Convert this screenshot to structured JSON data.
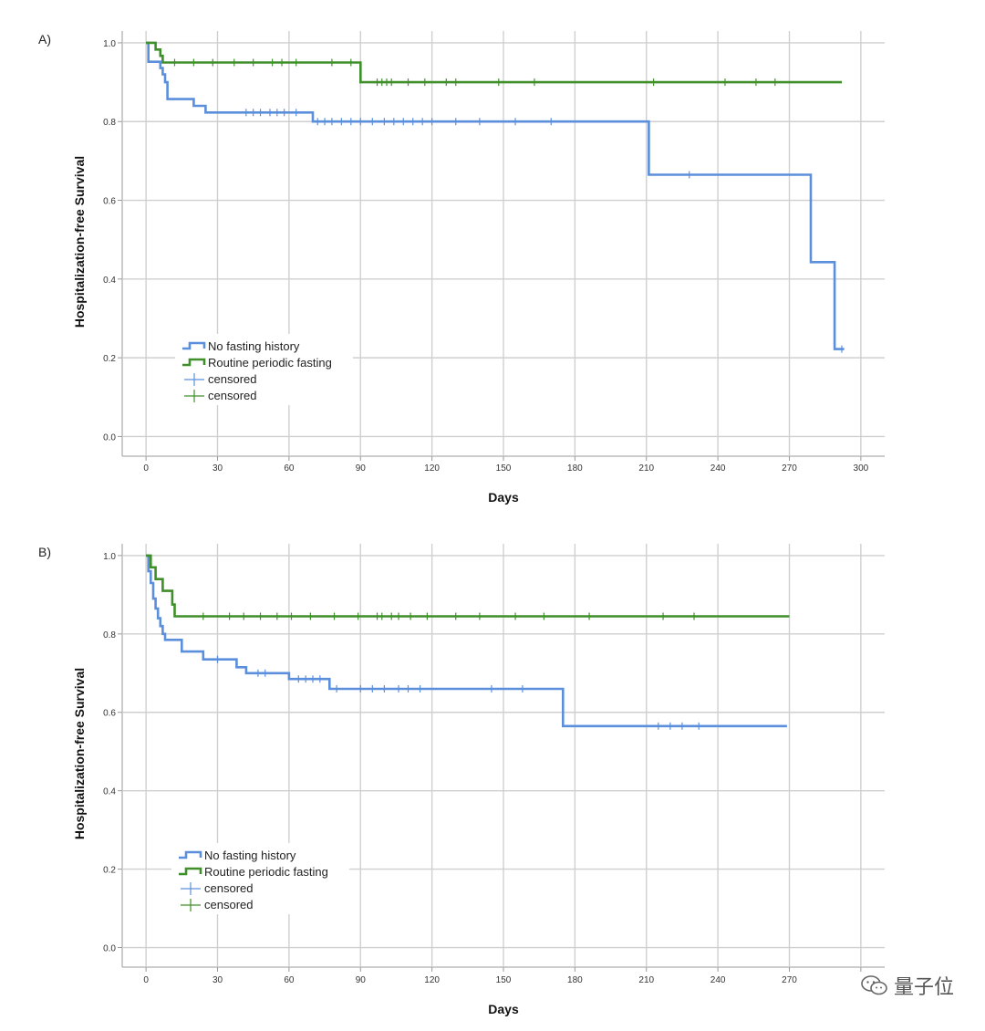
{
  "chart_data": [
    {
      "type": "line",
      "panel_label": "A)",
      "xlabel": "Days",
      "ylabel": "Hospitalization-free Survival",
      "xlim": [
        -10,
        310
      ],
      "ylim": [
        -0.05,
        1.03
      ],
      "xticks": [
        0,
        30,
        60,
        90,
        120,
        150,
        180,
        210,
        240,
        270,
        300
      ],
      "xtick_labels": [
        "0",
        "30",
        "60",
        "90",
        "120",
        "150",
        "180",
        "210",
        "240",
        "270",
        "300"
      ],
      "yticks": [
        0,
        0.2,
        0.4,
        0.6,
        0.8,
        1.0
      ],
      "ytick_labels": [
        "0.0",
        "0.2",
        "0.4",
        "0.6",
        "0.8",
        "1.0"
      ],
      "grid": true,
      "legend": {
        "location": "lower-left",
        "entries": [
          {
            "label": "No fasting history",
            "kind": "line",
            "color": "#5b8fdc"
          },
          {
            "label": "Routine periodic fasting",
            "kind": "line",
            "color": "#3f8f2a"
          },
          {
            "label": "censored",
            "kind": "cross",
            "color": "#5b8fdc"
          },
          {
            "label": "censored",
            "kind": "cross",
            "color": "#3f8f2a"
          }
        ]
      },
      "series": [
        {
          "name": "No fasting history",
          "color": "#5b8fdc",
          "steps": [
            [
              0,
              1.0
            ],
            [
              1,
              0.952
            ],
            [
              6,
              0.936
            ],
            [
              7,
              0.92
            ],
            [
              8,
              0.9
            ],
            [
              9,
              0.857
            ],
            [
              20,
              0.84
            ],
            [
              25,
              0.823
            ],
            [
              70,
              0.8
            ],
            [
              211,
              0.665
            ],
            [
              279,
              0.443
            ],
            [
              289,
              0.222
            ],
            [
              293,
              0.222
            ]
          ],
          "censored": [
            [
              42,
              0.823
            ],
            [
              45,
              0.823
            ],
            [
              48,
              0.823
            ],
            [
              52,
              0.823
            ],
            [
              55,
              0.823
            ],
            [
              58,
              0.823
            ],
            [
              63,
              0.823
            ],
            [
              72,
              0.8
            ],
            [
              75,
              0.8
            ],
            [
              78,
              0.8
            ],
            [
              82,
              0.8
            ],
            [
              86,
              0.8
            ],
            [
              90,
              0.8
            ],
            [
              95,
              0.8
            ],
            [
              100,
              0.8
            ],
            [
              104,
              0.8
            ],
            [
              108,
              0.8
            ],
            [
              112,
              0.8
            ],
            [
              116,
              0.8
            ],
            [
              120,
              0.8
            ],
            [
              130,
              0.8
            ],
            [
              140,
              0.8
            ],
            [
              155,
              0.8
            ],
            [
              170,
              0.8
            ],
            [
              228,
              0.665
            ],
            [
              292,
              0.222
            ]
          ]
        },
        {
          "name": "Routine periodic fasting",
          "color": "#3f8f2a",
          "steps": [
            [
              0,
              1.0
            ],
            [
              4,
              0.983
            ],
            [
              6,
              0.967
            ],
            [
              7,
              0.95
            ],
            [
              90,
              0.9
            ],
            [
              292,
              0.9
            ]
          ],
          "censored": [
            [
              12,
              0.95
            ],
            [
              20,
              0.95
            ],
            [
              28,
              0.95
            ],
            [
              37,
              0.95
            ],
            [
              45,
              0.95
            ],
            [
              53,
              0.95
            ],
            [
              57,
              0.95
            ],
            [
              63,
              0.95
            ],
            [
              78,
              0.95
            ],
            [
              86,
              0.95
            ],
            [
              97,
              0.9
            ],
            [
              99,
              0.9
            ],
            [
              101,
              0.9
            ],
            [
              103,
              0.9
            ],
            [
              110,
              0.9
            ],
            [
              117,
              0.9
            ],
            [
              126,
              0.9
            ],
            [
              130,
              0.9
            ],
            [
              148,
              0.9
            ],
            [
              163,
              0.9
            ],
            [
              213,
              0.9
            ],
            [
              243,
              0.9
            ],
            [
              256,
              0.9
            ],
            [
              264,
              0.9
            ]
          ]
        }
      ]
    },
    {
      "type": "line",
      "panel_label": "B)",
      "xlabel": "Days",
      "ylabel": "Hospitalization-free Survival",
      "xlim": [
        -10,
        310
      ],
      "ylim": [
        -0.05,
        1.03
      ],
      "xticks": [
        0,
        30,
        60,
        90,
        120,
        150,
        180,
        210,
        240,
        270,
        300
      ],
      "xtick_labels": [
        "0",
        "30",
        "60",
        "90",
        "120",
        "150",
        "180",
        "210",
        "240",
        "270",
        ""
      ],
      "yticks": [
        0,
        0.2,
        0.4,
        0.6,
        0.8,
        1.0
      ],
      "ytick_labels": [
        "0.0",
        "0.2",
        "0.4",
        "0.6",
        "0.8",
        "1.0"
      ],
      "grid": true,
      "legend": {
        "location": "lower-left",
        "entries": [
          {
            "label": "No fasting history",
            "kind": "line",
            "color": "#5b8fdc"
          },
          {
            "label": "Routine periodic fasting",
            "kind": "line",
            "color": "#3f8f2a"
          },
          {
            "label": "censored",
            "kind": "cross",
            "color": "#5b8fdc"
          },
          {
            "label": "censored",
            "kind": "cross",
            "color": "#3f8f2a"
          }
        ]
      },
      "series": [
        {
          "name": "No fasting history",
          "color": "#5b8fdc",
          "steps": [
            [
              0,
              1.0
            ],
            [
              1,
              0.96
            ],
            [
              2,
              0.93
            ],
            [
              3,
              0.89
            ],
            [
              4,
              0.865
            ],
            [
              5,
              0.84
            ],
            [
              6,
              0.82
            ],
            [
              7,
              0.8
            ],
            [
              8,
              0.785
            ],
            [
              15,
              0.755
            ],
            [
              24,
              0.735
            ],
            [
              38,
              0.715
            ],
            [
              42,
              0.7
            ],
            [
              60,
              0.685
            ],
            [
              77,
              0.66
            ],
            [
              175,
              0.565
            ],
            [
              269,
              0.565
            ]
          ],
          "censored": [
            [
              30,
              0.735
            ],
            [
              47,
              0.7
            ],
            [
              50,
              0.7
            ],
            [
              64,
              0.685
            ],
            [
              67,
              0.685
            ],
            [
              70,
              0.685
            ],
            [
              73,
              0.685
            ],
            [
              80,
              0.66
            ],
            [
              90,
              0.66
            ],
            [
              95,
              0.66
            ],
            [
              100,
              0.66
            ],
            [
              106,
              0.66
            ],
            [
              110,
              0.66
            ],
            [
              115,
              0.66
            ],
            [
              145,
              0.66
            ],
            [
              158,
              0.66
            ],
            [
              215,
              0.565
            ],
            [
              220,
              0.565
            ],
            [
              225,
              0.565
            ],
            [
              232,
              0.565
            ]
          ]
        },
        {
          "name": "Routine periodic fasting",
          "color": "#3f8f2a",
          "steps": [
            [
              0,
              1.0
            ],
            [
              2,
              0.97
            ],
            [
              4,
              0.94
            ],
            [
              7,
              0.91
            ],
            [
              11,
              0.875
            ],
            [
              12,
              0.845
            ],
            [
              270,
              0.845
            ]
          ],
          "censored": [
            [
              24,
              0.845
            ],
            [
              35,
              0.845
            ],
            [
              41,
              0.845
            ],
            [
              48,
              0.845
            ],
            [
              55,
              0.845
            ],
            [
              61,
              0.845
            ],
            [
              69,
              0.845
            ],
            [
              79,
              0.845
            ],
            [
              89,
              0.845
            ],
            [
              97,
              0.845
            ],
            [
              99,
              0.845
            ],
            [
              103,
              0.845
            ],
            [
              106,
              0.845
            ],
            [
              111,
              0.845
            ],
            [
              118,
              0.845
            ],
            [
              130,
              0.845
            ],
            [
              140,
              0.845
            ],
            [
              155,
              0.845
            ],
            [
              167,
              0.845
            ],
            [
              186,
              0.845
            ],
            [
              217,
              0.845
            ],
            [
              230,
              0.845
            ]
          ]
        }
      ]
    }
  ],
  "watermark": {
    "text": "量子位",
    "icon": "wechat-icon"
  }
}
